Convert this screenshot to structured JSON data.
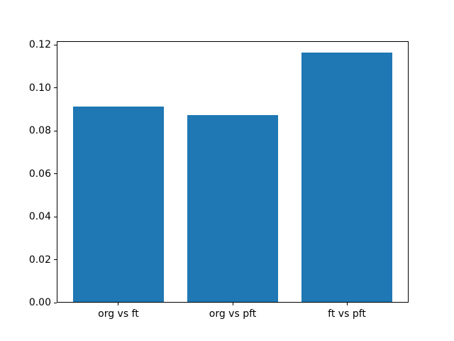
{
  "chart_data": {
    "type": "bar",
    "categories": [
      "org vs ft",
      "org vs pft",
      "ft vs pft"
    ],
    "values": [
      0.0913,
      0.0875,
      0.1164
    ],
    "title": "",
    "xlabel": "",
    "ylabel": "",
    "ylim": [
      0,
      0.1218
    ],
    "yticks": [
      0.0,
      0.02,
      0.04,
      0.06,
      0.08,
      0.1,
      0.12
    ],
    "ytick_labels": [
      "0.00",
      "0.02",
      "0.04",
      "0.06",
      "0.08",
      "0.10",
      "0.12"
    ],
    "bar_color": "#1f77b4",
    "bar_width_fraction": 0.8,
    "grid": false,
    "legend_position": "none",
    "background_color": "#ffffff",
    "spine_color": "#000000"
  }
}
